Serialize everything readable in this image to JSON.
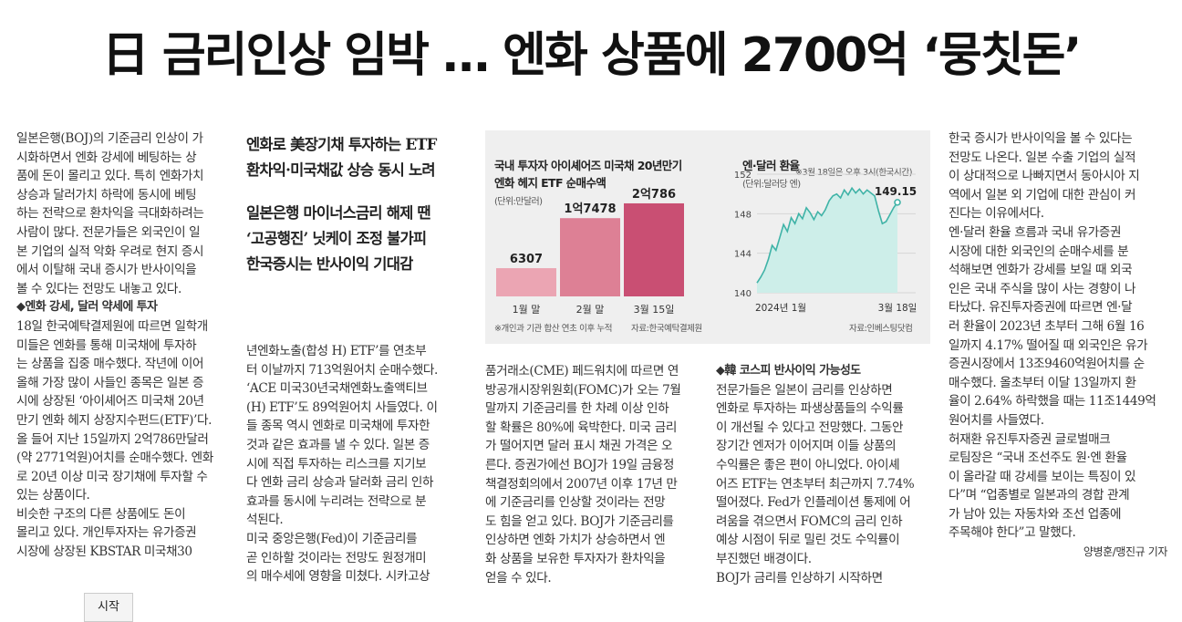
{
  "headline": "日 금리인상 임박 … 엔화 상품에 2700억 ‘뭉칫돈’",
  "col1": {
    "para1": "일본은행(BOJ)의 기준금리 인상이 가\n시화하면서 엔화 강세에 베팅하는 상\n품에 돈이 몰리고 있다. 특히 엔화가치\n상승과 달러가치 하락에 동시에 베팅\n하는 전략으로 환차익을 극대화하려는\n사람이 많다. 전문가들은 외국인이 일\n본 기업의 실적 악화 우려로 현지 증시\n에서 이탈해 국내 증시가 반사이익을\n볼 수 있다는 전망도 내놓고 있다.",
    "subhead": "◆엔화 강세, 달러 약세에 투자",
    "para2": "18일 한국예탁결제원에 따르면 일학개\n미들은 엔화를 통해 미국채에 투자하\n는 상품을 집중 매수했다. 작년에 이어\n올해 가장 많이 사들인 종목은 일본 증\n시에 상장된 ‘아이셰어즈 미국채 20년\n만기 엔화 헤지 상장지수펀드(ETF)’다.\n올 들어 지난 15일까지 2억786만달러\n(약 2771억원)어치를 순매수했다. 엔화\n로 20년 이상 미국 장기채에 투자할 수\n있는 상품이다.",
    "para3": "  비슷한 구조의 다른 상품에도 돈이\n몰리고 있다. 개인투자자는 유가증권\n시장에 상장된 KBSTAR 미국채30"
  },
  "deck": {
    "line1": "엔화로 美장기채 투자하는 ETF\n환차익·미국채값 상승 동시 노려",
    "line2": "일본은행 마이너스금리 해제 땐\n‘고공행진’ 닛케이 조정 불가피\n한국증시는 반사이익 기대감"
  },
  "col2": {
    "text": "년엔화노출(합성 H) ETF’를 연초부\n터 이날까지 713억원어치 순매수했다.\n‘ACE 미국30년국채엔화노출액티브\n(H) ETF’도 89억원어치 사들였다. 이\n들 종목 역시 엔화로 미국채에 투자한\n것과 같은 효과를 낼 수 있다. 일본 증\n시에 직접 투자하는 리스크를 지기보\n다 엔화 금리 상승과 달러화 금리 인하\n효과를 동시에 누리려는 전략으로 분\n석된다.\n  미국 중앙은행(Fed)이 기준금리를\n곧 인하할 것이라는 전망도 원정개미\n의 매수세에 영향을 미쳤다. 시카고상"
  },
  "col3": {
    "text": "품거래소(CME) 페드워치에 따르면 연\n방공개시장위원회(FOMC)가 오는 7월\n말까지 기준금리를 한 차례 이상 인하\n할 확률은 80%에 육박한다. 미국 금리\n가 떨어지면 달러 표시 채권 가격은 오\n른다. 증권가에선 BOJ가 19일 금융정\n책결정회의에서 2007년 이후 17년 만\n에 기준금리를 인상할 것이라는 전망\n도 힘을 얻고 있다. BOJ가 기준금리를\n인상하면 엔화 가치가 상승하면서 엔\n화 상품을 보유한 투자자가 환차익을\n얻을 수 있다."
  },
  "col4": {
    "subhead": "◆韓 코스피 반사이익 가능성도",
    "text": "전문가들은 일본이 금리를 인상하면\n엔화로 투자하는 파생상품들의 수익률\n이 개선될 수 있다고 전망했다. 그동안\n장기간 엔저가 이어지며 이들 상품의\n수익률은 좋은 편이 아니었다. 아이셰\n어즈 ETF는 연초부터 최근까지 7.74%\n떨어졌다. Fed가 인플레이션 통제에 어\n려움을 겪으면서 FOMC의 금리 인하\n예상 시점이 뒤로 밀린 것도 수익률이\n부진했던 배경이다.\n  BOJ가 금리를 인상하기 시작하면"
  },
  "col5": {
    "text": "한국 증시가 반사이익을 볼 수 있다는\n전망도 나온다. 일본 수출 기업의 실적\n이 상대적으로 나빠지면서 동아시아 지\n역에서 일본 외 기업에 대한 관심이 커\n진다는 이유에서다.\n  엔·달러 환율 흐름과 국내 유가증권\n시장에 대한 외국인의 순매수세를 분\n석해보면 엔화가 강세를 보일 때 외국\n인은 국내 주식을 많이 사는 경향이 나\n타났다. 유진투자증권에 따르면 엔·달\n러 환율이 2023년 초부터 그해 6월 16\n일까지 4.17% 떨어질 때 외국인은 유가\n증권시장에서 13조9460억원어치를 순\n매수했다. 올초부터 이달 13일까지 환\n율이 2.64% 하락했을 때는 11조1449억\n원어치를 사들였다.\n  허재환 유진투자증권 글로벌매크\n로팀장은 “국내 조선주도 원·엔 환율\n이 올라갈 때 강세를 보이는 특징이 있\n다”며 “업종별로 일본과의 경합 관계\n가 남아 있는 자동차와 조선 업종에\n주목해야 한다”고 말했다.",
    "byline": "양병훈/맹진규 기자"
  },
  "tooltip": "시작",
  "chart_data": [
    {
      "type": "bar",
      "title": "국내 투자자 아이셰어즈 미국채 20년만기\n엔화 헤지 ETF 순매수액",
      "unit_note": "(단위:만달러)",
      "categories": [
        "1월 말",
        "2월 말",
        "3월 15일"
      ],
      "values": [
        6307,
        17478,
        20786
      ],
      "data_labels": [
        "6307",
        "1억7478",
        "2억786"
      ],
      "colors": [
        "#eba5b3",
        "#dd8095",
        "#c94f73"
      ],
      "ylim": [
        0,
        22000
      ],
      "notes": [
        "※개인과 기관 합산 연초 이후 누적",
        "자료:한국예탁결제원"
      ]
    },
    {
      "type": "area",
      "title": "엔·달러 환율",
      "unit_note": "(단위:달러당 엔)",
      "annotation": "※3월 18일은 오후 3시(한국시간)",
      "end_label": "149.15",
      "x_labels": [
        "2024년 1월",
        "3월 18일"
      ],
      "y_ticks": [
        140,
        144,
        148,
        152
      ],
      "ylim": [
        140,
        152
      ],
      "values": [
        141.0,
        141.6,
        142.3,
        143.4,
        144.8,
        144.3,
        145.6,
        146.9,
        146.2,
        147.6,
        147.0,
        148.0,
        147.5,
        148.6,
        148.1,
        147.4,
        148.2,
        147.8,
        148.4,
        149.3,
        149.8,
        150.0,
        149.6,
        150.4,
        149.9,
        150.6,
        150.1,
        150.5,
        150.0,
        150.4,
        150.1,
        149.8,
        148.3,
        147.0,
        147.2,
        147.9,
        148.6,
        149.15
      ],
      "line_color": "#3fb3a7",
      "fill_color": "#cdeee9",
      "source": "자료:인베스팅닷컴"
    }
  ]
}
